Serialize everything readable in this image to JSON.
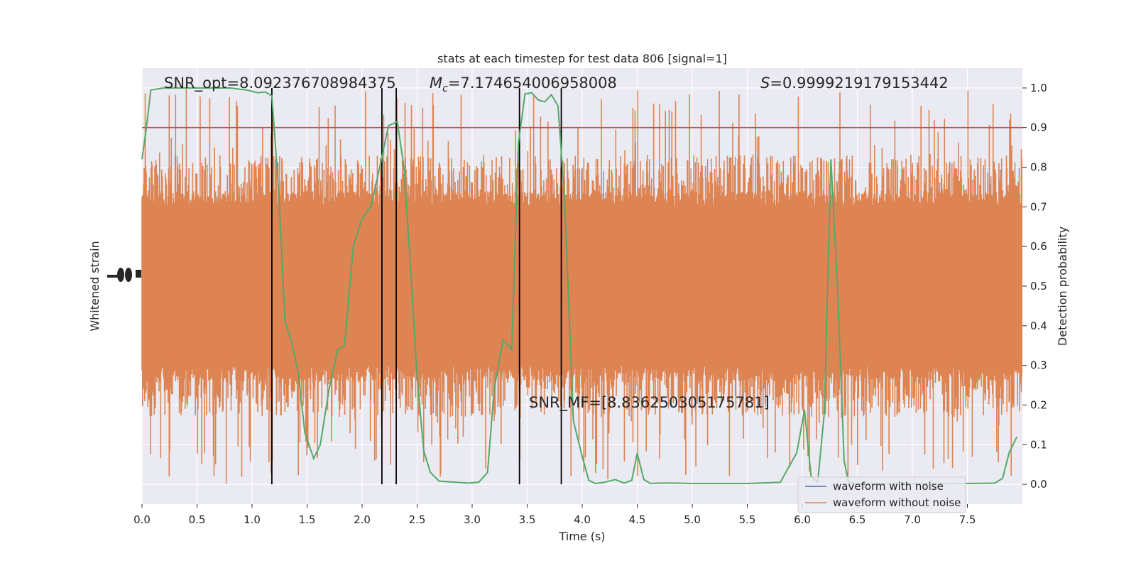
{
  "chart_data": {
    "type": "line",
    "title": "stats at each timestep for test data 806 [signal=1]",
    "xlabel": "Time (s)",
    "ylabel_left": "Whitened strain",
    "ylabel_right": "Detection probability",
    "xlim": [
      0.0,
      8.0
    ],
    "ylim_right": [
      -0.05,
      1.05
    ],
    "x_ticks": [
      "0.0",
      "0.5",
      "1.0",
      "1.5",
      "2.0",
      "2.5",
      "3.0",
      "3.5",
      "4.0",
      "4.5",
      "5.0",
      "5.5",
      "6.0",
      "6.5",
      "7.0",
      "7.5"
    ],
    "x_tick_values": [
      0.0,
      0.5,
      1.0,
      1.5,
      2.0,
      2.5,
      3.0,
      3.5,
      4.0,
      4.5,
      5.0,
      5.5,
      6.0,
      6.5,
      7.0,
      7.5
    ],
    "y_right_ticks": [
      "0.0",
      "0.1",
      "0.2",
      "0.3",
      "0.4",
      "0.5",
      "0.6",
      "0.7",
      "0.8",
      "0.9",
      "1.0"
    ],
    "y_right_tick_values": [
      0.0,
      0.1,
      0.2,
      0.3,
      0.4,
      0.5,
      0.6,
      0.7,
      0.8,
      0.9,
      1.0
    ],
    "grid": true,
    "legend_position": "lower-right",
    "series": [
      {
        "name": "waveform with noise",
        "color": "#4c72b0"
      },
      {
        "name": "waveform without noise",
        "color": "#dd8452"
      }
    ],
    "strain_noise_envelope": {
      "band_low": 0.3,
      "band_high": 0.7,
      "spike_low": 0.0,
      "spike_high": 1.0
    },
    "detection_probability": {
      "color": "#55a868",
      "x": [
        0.0,
        0.04,
        0.08,
        0.2,
        0.35,
        0.5,
        0.65,
        0.8,
        0.95,
        1.05,
        1.12,
        1.18,
        1.24,
        1.3,
        1.36,
        1.42,
        1.48,
        1.56,
        1.62,
        1.7,
        1.78,
        1.84,
        1.92,
        2.0,
        2.08,
        2.16,
        2.24,
        2.32,
        2.38,
        2.44,
        2.5,
        2.56,
        2.62,
        2.7,
        2.8,
        2.96,
        3.06,
        3.14,
        3.2,
        3.28,
        3.36,
        3.42,
        3.48,
        3.54,
        3.6,
        3.66,
        3.72,
        3.78,
        3.84,
        3.92,
        4.0,
        4.06,
        4.12,
        4.2,
        4.3,
        4.38,
        4.45,
        4.5,
        4.56,
        4.62,
        4.7,
        4.85,
        5.0,
        5.2,
        5.5,
        5.8,
        5.95,
        6.02,
        6.08,
        6.14,
        6.2,
        6.26,
        6.32,
        6.38,
        6.42,
        6.5,
        6.6,
        7.0,
        7.5,
        7.75,
        7.82,
        7.88,
        7.95
      ],
      "y": [
        0.82,
        0.9,
        0.995,
        1.0,
        1.0,
        1.0,
        1.0,
        1.0,
        0.995,
        0.988,
        0.99,
        0.98,
        0.75,
        0.41,
        0.36,
        0.28,
        0.13,
        0.065,
        0.1,
        0.24,
        0.34,
        0.35,
        0.6,
        0.67,
        0.7,
        0.8,
        0.905,
        0.915,
        0.8,
        0.55,
        0.27,
        0.085,
        0.03,
        0.008,
        0.006,
        0.003,
        0.005,
        0.03,
        0.24,
        0.365,
        0.34,
        0.86,
        0.985,
        0.988,
        0.97,
        0.965,
        0.983,
        0.955,
        0.72,
        0.16,
        0.07,
        0.01,
        0.002,
        0.005,
        0.012,
        0.003,
        0.01,
        0.078,
        0.012,
        0.002,
        0.003,
        0.003,
        0.002,
        0.002,
        0.002,
        0.005,
        0.08,
        0.188,
        0.02,
        0.005,
        0.18,
        0.82,
        0.5,
        0.06,
        0.005,
        0.002,
        0.002,
        0.001,
        0.002,
        0.003,
        0.015,
        0.08,
        0.12
      ]
    },
    "threshold": {
      "y": 0.9,
      "color": "#c44e52"
    },
    "event_lines_x": [
      1.18,
      2.18,
      2.31,
      3.43,
      3.81
    ],
    "event_lines_top_y": 1.0,
    "annotations": {
      "snr_opt": "SNR_opt=8.092376708984375",
      "mc_symbol": "M",
      "mc_subscript": "c",
      "mc_value": "=7.174654006958008",
      "s_symbol": "S",
      "s_value": "=0.9999219179153442",
      "snr_mf": "SNR_MF=[8.836250305175781]"
    }
  }
}
